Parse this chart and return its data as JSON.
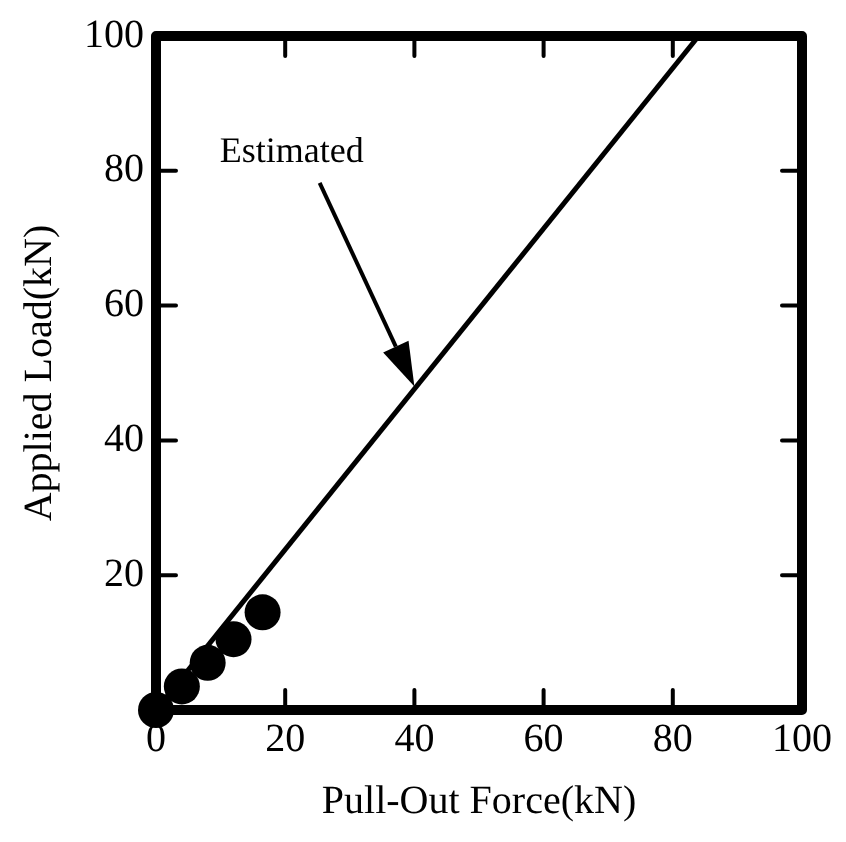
{
  "chart_data": {
    "type": "scatter",
    "xlabel": "Pull-Out Force(kN)",
    "ylabel": "Applied Load(kN)",
    "xlim": [
      0,
      100
    ],
    "ylim": [
      0,
      100
    ],
    "xticks": [
      0,
      20,
      40,
      60,
      80,
      100
    ],
    "yticks": [
      20,
      40,
      60,
      80,
      100
    ],
    "series": [
      {
        "color": "#000000",
        "marker": "circle",
        "x": [
          0,
          4,
          8,
          12,
          16.5
        ],
        "values": [
          0,
          3.5,
          7,
          10.5,
          14.5
        ]
      },
      {
        "type": "line",
        "color": "#000000",
        "marker": "none",
        "x": [
          0,
          84
        ],
        "values": [
          0,
          100
        ]
      }
    ],
    "annotations": [
      "Estimated"
    ],
    "legend": false
  }
}
